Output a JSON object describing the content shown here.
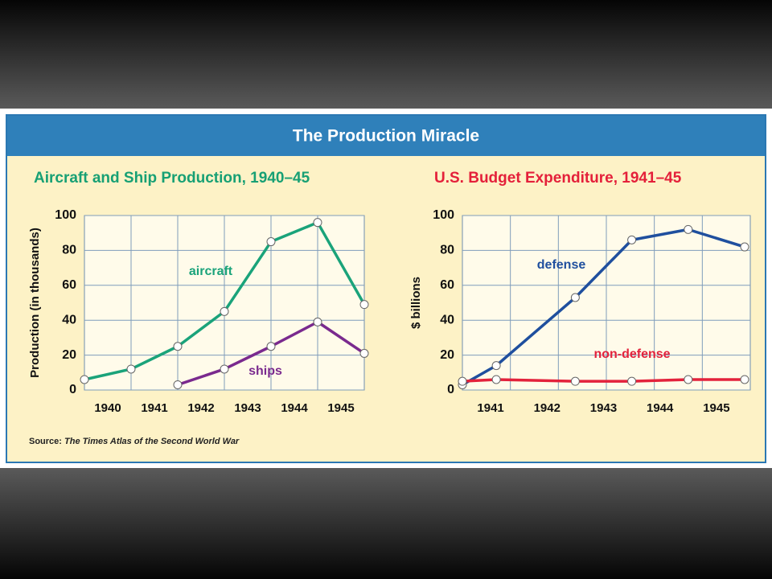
{
  "header": {
    "title": "The Production Miracle"
  },
  "source": {
    "prefix": "Source:",
    "title": "The Times Atlas of the Second World War"
  },
  "chart_data": [
    {
      "type": "line",
      "title": "Aircraft and Ship Production, 1940–45",
      "ylabel": "Production (in thousands)",
      "x": [
        1939.5,
        1940.5,
        1941.5,
        1942.5,
        1943.5,
        1944.5,
        1945.5
      ],
      "xlim": [
        1939.5,
        1945.5
      ],
      "xticks": [
        1940,
        1941,
        1942,
        1943,
        1944,
        1945
      ],
      "ylim": [
        0,
        100
      ],
      "yticks": [
        0,
        20,
        40,
        60,
        80,
        100
      ],
      "grid": true,
      "title_color": "#17a074",
      "series": [
        {
          "name": "aircraft",
          "color": "#1aa37a",
          "values": [
            6,
            12,
            25,
            45,
            85,
            96,
            49
          ]
        },
        {
          "name": "ships",
          "color": "#7a2a8e",
          "values": [
            null,
            null,
            3,
            12,
            25,
            39,
            21
          ]
        }
      ]
    },
    {
      "type": "line",
      "title": "U.S. Budget Expenditure, 1941–45",
      "ylabel": "$ billions",
      "x": [
        1940.5,
        1941.1,
        1942.5,
        1943.5,
        1944.5,
        1945.5
      ],
      "xlim": [
        1940.5,
        1945.6
      ],
      "xticks": [
        1941,
        1942,
        1943,
        1944,
        1945
      ],
      "ylim": [
        0,
        100
      ],
      "yticks": [
        0,
        20,
        40,
        60,
        80,
        100
      ],
      "grid": true,
      "title_color": "#e4203a",
      "series": [
        {
          "name": "defense",
          "color": "#1f4f9e",
          "values": [
            3,
            14,
            53,
            86,
            92,
            82
          ]
        },
        {
          "name": "non-defense",
          "color": "#e3223c",
          "values": [
            5,
            6,
            5,
            5,
            6,
            6
          ]
        }
      ]
    }
  ]
}
